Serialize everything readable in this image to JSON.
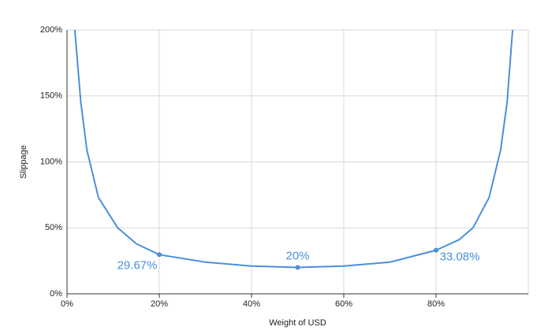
{
  "chart_data": {
    "type": "line",
    "x_label": "Weight of USD",
    "y_label": "Slippage",
    "xlim": [
      0,
      100
    ],
    "ylim": [
      0,
      200
    ],
    "xticks": [
      {
        "value": 0,
        "label": "0%"
      },
      {
        "value": 20,
        "label": "20%"
      },
      {
        "value": 40,
        "label": "40%"
      },
      {
        "value": 60,
        "label": "60%"
      },
      {
        "value": 80,
        "label": "80%"
      }
    ],
    "yticks": [
      {
        "value": 0,
        "label": "0%"
      },
      {
        "value": 50,
        "label": "50%"
      },
      {
        "value": 100,
        "label": "100%"
      },
      {
        "value": 150,
        "label": "150%"
      },
      {
        "value": 200,
        "label": "200%"
      }
    ],
    "grid": true,
    "color": "#4a8fdb",
    "x": [
      1.7,
      3,
      4.3,
      6.8,
      11,
      15,
      20,
      30,
      40,
      50,
      60,
      70,
      80,
      85,
      88,
      91.5,
      94,
      95.4,
      96.6
    ],
    "values": [
      200,
      145,
      109,
      73,
      50,
      38,
      29.67,
      24,
      21,
      20,
      21,
      24,
      33.08,
      41,
      50,
      73,
      109,
      145,
      200
    ],
    "markers": {
      "x": [
        20,
        50,
        80
      ],
      "values": [
        29.67,
        20,
        33.08
      ],
      "value_labels": [
        "29.67%",
        "20%",
        "33.08%"
      ]
    }
  }
}
